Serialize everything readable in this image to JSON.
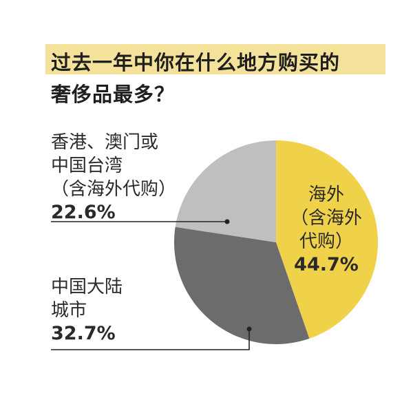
{
  "title": {
    "line1": "过去一年中你在什么地方购买的",
    "line2": "奢侈品最多？"
  },
  "chart_data": {
    "type": "pie",
    "slices": [
      {
        "name": "海外（含海外代购）",
        "label_lines": [
          "海外",
          "（含海外",
          "代购）"
        ],
        "value": 44.7,
        "value_label": "44.7%",
        "color": "#f0d24a"
      },
      {
        "name": "中国大陆城市",
        "label_lines": [
          "中国大陆",
          "城市"
        ],
        "value": 32.7,
        "value_label": "32.7%",
        "color": "#6c6c6c"
      },
      {
        "name": "香港、澳门或中国台湾（含海外代购）",
        "label_lines": [
          "香港、澳门或",
          "中国台湾",
          "（含海外代购）"
        ],
        "value": 22.6,
        "value_label": "22.6%",
        "color": "#bfbfbf"
      }
    ]
  }
}
